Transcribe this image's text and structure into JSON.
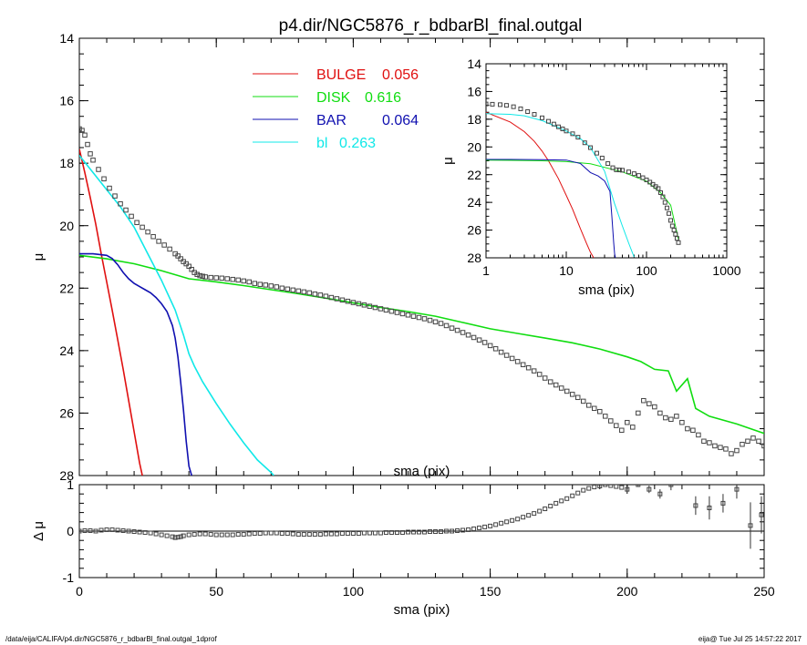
{
  "title": "p4.dir/NGC5876_r_bdbarBl_final.outgal",
  "footer_left": "/data/eija/CALIFA/p4.dir/NGC5876_r_bdbarBl_final.outgal_1dprof",
  "footer_right": "eija@  Tue Jul 25 14:57:22 2017",
  "colors": {
    "bulge": "#e01010",
    "disk": "#10dd10",
    "bar": "#1010b0",
    "bl": "#10e8e8",
    "data": "#444444"
  },
  "chart_data": [
    {
      "type": "line",
      "panel": "main",
      "xlabel": "sma (pix)",
      "ylabel": "μ",
      "xlim": [
        0,
        250
      ],
      "ylim": [
        28,
        14
      ],
      "y_inverted": true,
      "xticks": [
        0,
        50,
        100,
        150,
        200,
        250
      ],
      "yticks": [
        14,
        16,
        18,
        20,
        22,
        24,
        26,
        28
      ],
      "legend_position": "top-center",
      "legend": [
        {
          "key": "bulge",
          "label": "BULGE",
          "value": "0.056"
        },
        {
          "key": "disk",
          "label": "DISK",
          "value": "0.616"
        },
        {
          "key": "bar",
          "label": "BAR",
          "value": "0.064"
        },
        {
          "key": "bl",
          "label": "bl",
          "value": "0.263"
        }
      ],
      "data_points": {
        "x": [
          0,
          1,
          2,
          3,
          4,
          5,
          7,
          9,
          11,
          13,
          15,
          17,
          19,
          21,
          23,
          25,
          27,
          29,
          31,
          33,
          35,
          36,
          37,
          38,
          39,
          40,
          41,
          42,
          43,
          44,
          45,
          46,
          48,
          50,
          52,
          54,
          56,
          58,
          60,
          62,
          64,
          66,
          68,
          70,
          72,
          74,
          76,
          78,
          80,
          82,
          84,
          86,
          88,
          90,
          92,
          94,
          96,
          98,
          100,
          102,
          104,
          106,
          108,
          110,
          112,
          114,
          116,
          118,
          120,
          122,
          124,
          126,
          128,
          130,
          132,
          134,
          136,
          138,
          140,
          142,
          144,
          146,
          148,
          150,
          152,
          154,
          156,
          158,
          160,
          162,
          164,
          166,
          168,
          170,
          172,
          174,
          176,
          178,
          180,
          182,
          184,
          186,
          188,
          190,
          192,
          194,
          196,
          198,
          200,
          202,
          204,
          206,
          208,
          210,
          212,
          214,
          216,
          218,
          220,
          222,
          224,
          226,
          228,
          230,
          232,
          234,
          236,
          238,
          240,
          242,
          244,
          246,
          248,
          250
        ],
        "y": [
          16.9,
          16.95,
          17.1,
          17.4,
          17.7,
          17.9,
          18.2,
          18.5,
          18.8,
          19.05,
          19.3,
          19.5,
          19.7,
          19.9,
          20.05,
          20.2,
          20.35,
          20.5,
          20.62,
          20.75,
          20.9,
          20.97,
          21.06,
          21.15,
          21.22,
          21.3,
          21.4,
          21.5,
          21.56,
          21.6,
          21.62,
          21.64,
          21.66,
          21.67,
          21.68,
          21.7,
          21.72,
          21.74,
          21.77,
          21.8,
          21.85,
          21.88,
          21.9,
          21.93,
          21.96,
          22.0,
          22.03,
          22.06,
          22.09,
          22.12,
          22.15,
          22.19,
          22.22,
          22.26,
          22.3,
          22.34,
          22.38,
          22.42,
          22.46,
          22.5,
          22.54,
          22.58,
          22.62,
          22.66,
          22.7,
          22.74,
          22.78,
          22.82,
          22.86,
          22.9,
          22.94,
          22.98,
          23.03,
          23.08,
          23.13,
          23.2,
          23.28,
          23.35,
          23.42,
          23.5,
          23.58,
          23.66,
          23.74,
          23.84,
          23.94,
          24.05,
          24.15,
          24.25,
          24.35,
          24.45,
          24.55,
          24.65,
          24.76,
          24.88,
          25.0,
          25.1,
          25.2,
          25.3,
          25.4,
          25.5,
          25.62,
          25.75,
          25.85,
          25.95,
          26.1,
          26.25,
          26.4,
          26.55,
          26.3,
          26.45,
          26.0,
          25.6,
          25.7,
          25.8,
          26.0,
          26.15,
          26.2,
          26.1,
          26.3,
          26.5,
          26.55,
          26.7,
          26.9,
          26.95,
          27.05,
          27.1,
          27.15,
          27.3,
          27.2,
          27.0,
          26.9,
          26.8,
          26.9,
          27.05
        ]
      },
      "series": [
        {
          "key": "bulge",
          "x": [
            0,
            2,
            4,
            6,
            8,
            10,
            12,
            14,
            16,
            18,
            20,
            22,
            23
          ],
          "y": [
            17.55,
            18.3,
            19.1,
            19.95,
            20.9,
            21.8,
            22.7,
            23.65,
            24.6,
            25.6,
            26.6,
            27.6,
            28.0
          ]
        },
        {
          "key": "disk",
          "x": [
            0,
            10,
            20,
            30,
            40,
            50,
            60,
            70,
            80,
            90,
            100,
            110,
            120,
            130,
            140,
            150,
            160,
            170,
            180,
            190,
            200,
            205,
            210,
            215,
            218,
            222,
            225,
            230,
            240,
            250
          ],
          "y": [
            20.95,
            21.06,
            21.22,
            21.44,
            21.7,
            21.8,
            21.92,
            22.05,
            22.18,
            22.32,
            22.47,
            22.62,
            22.75,
            22.9,
            23.1,
            23.3,
            23.45,
            23.6,
            23.75,
            23.95,
            24.2,
            24.35,
            24.6,
            24.65,
            25.3,
            24.9,
            25.85,
            26.1,
            26.35,
            26.65
          ]
        },
        {
          "key": "bar",
          "x": [
            0,
            5,
            10,
            12,
            14,
            16,
            18,
            20,
            22,
            24,
            26,
            28,
            30,
            32,
            34,
            35,
            36,
            37,
            38,
            39,
            40,
            41
          ],
          "y": [
            20.9,
            20.9,
            20.95,
            21.05,
            21.25,
            21.5,
            21.7,
            21.85,
            21.95,
            22.05,
            22.15,
            22.3,
            22.5,
            22.75,
            23.2,
            23.6,
            24.2,
            25.0,
            25.9,
            26.9,
            27.7,
            28.0
          ]
        },
        {
          "key": "bl",
          "x": [
            0,
            5,
            10,
            15,
            20,
            25,
            30,
            35,
            38,
            40,
            42,
            45,
            50,
            55,
            60,
            65,
            70,
            71
          ],
          "y": [
            17.75,
            18.3,
            18.85,
            19.4,
            20.05,
            20.9,
            21.75,
            22.7,
            23.5,
            24.1,
            24.5,
            25.0,
            25.7,
            26.35,
            26.95,
            27.5,
            27.9,
            28.0
          ]
        }
      ]
    },
    {
      "type": "line",
      "panel": "inset",
      "xlabel": "sma (pix)",
      "ylabel": "μ",
      "x_scale": "log",
      "xlim": [
        1,
        1000
      ],
      "ylim": [
        28,
        14
      ],
      "y_inverted": true,
      "xticks": [
        1,
        10,
        100,
        1000
      ],
      "xtick_labels": [
        "1",
        "10",
        "100",
        "1000"
      ],
      "yticks": [
        14,
        16,
        18,
        20,
        22,
        24,
        26,
        28
      ],
      "data_points": {
        "x": [
          1,
          1.2,
          1.5,
          1.8,
          2.2,
          2.7,
          3.3,
          4,
          5,
          6,
          7,
          8,
          9,
          10,
          12,
          14,
          17,
          20,
          24,
          28,
          33,
          38,
          42,
          46,
          50,
          60,
          70,
          80,
          90,
          100,
          110,
          120,
          130,
          140,
          150,
          160,
          170,
          180,
          190,
          200,
          210,
          220,
          230,
          240,
          250
        ],
        "y": [
          16.9,
          16.92,
          16.95,
          17.0,
          17.1,
          17.25,
          17.45,
          17.65,
          17.9,
          18.15,
          18.35,
          18.55,
          18.7,
          18.85,
          19.05,
          19.3,
          19.7,
          20.05,
          20.45,
          20.8,
          21.2,
          21.5,
          21.65,
          21.66,
          21.68,
          21.8,
          21.93,
          22.06,
          22.22,
          22.38,
          22.54,
          22.7,
          22.86,
          23.0,
          23.3,
          23.6,
          24.0,
          24.4,
          24.8,
          25.3,
          25.7,
          26.0,
          26.3,
          26.6,
          26.9
        ]
      },
      "series": [
        {
          "key": "bulge",
          "x": [
            1,
            2,
            3,
            4,
            5,
            6,
            8,
            10,
            12,
            15,
            18,
            20,
            22
          ],
          "y": [
            17.5,
            18.2,
            18.9,
            19.6,
            20.3,
            21.0,
            22.3,
            23.5,
            24.5,
            25.9,
            27.0,
            27.6,
            28.0
          ]
        },
        {
          "key": "disk",
          "x": [
            1,
            2,
            5,
            10,
            20,
            50,
            100,
            150,
            200,
            250
          ],
          "y": [
            20.95,
            20.97,
            21.0,
            21.06,
            21.22,
            21.8,
            22.47,
            23.3,
            24.2,
            26.65
          ]
        },
        {
          "key": "bar",
          "x": [
            1,
            2,
            5,
            10,
            15,
            20,
            25,
            30,
            35,
            37,
            39,
            40,
            41
          ],
          "y": [
            20.9,
            20.9,
            20.92,
            20.95,
            21.2,
            21.85,
            22.1,
            22.45,
            23.2,
            25.0,
            26.9,
            27.7,
            28.0
          ]
        },
        {
          "key": "bl",
          "x": [
            1,
            2,
            3,
            5,
            8,
            10,
            15,
            20,
            30,
            40,
            50,
            60,
            70
          ],
          "y": [
            17.6,
            17.65,
            17.75,
            18.1,
            18.6,
            18.85,
            19.4,
            20.05,
            21.75,
            24.1,
            25.7,
            26.95,
            27.95
          ]
        }
      ]
    },
    {
      "type": "scatter",
      "panel": "residual",
      "xlabel": "sma (pix)",
      "ylabel": "Δ μ",
      "xlim": [
        0,
        250
      ],
      "ylim": [
        -1,
        1
      ],
      "xticks": [
        0,
        50,
        100,
        150,
        200,
        250
      ],
      "yticks": [
        -1,
        0,
        1
      ],
      "zero_line": true,
      "points": {
        "x": [
          0,
          2,
          4,
          6,
          8,
          10,
          12,
          14,
          16,
          18,
          20,
          22,
          24,
          26,
          28,
          30,
          32,
          34,
          35,
          36,
          37,
          38,
          40,
          42,
          44,
          46,
          48,
          50,
          52,
          54,
          56,
          58,
          60,
          62,
          64,
          66,
          68,
          70,
          72,
          74,
          76,
          78,
          80,
          82,
          84,
          86,
          88,
          90,
          92,
          94,
          96,
          98,
          100,
          102,
          104,
          106,
          108,
          110,
          112,
          114,
          116,
          118,
          120,
          122,
          124,
          126,
          128,
          130,
          132,
          134,
          136,
          138,
          140,
          142,
          144,
          146,
          148,
          150,
          152,
          154,
          156,
          158,
          160,
          162,
          164,
          166,
          168,
          170,
          172,
          174,
          176,
          178,
          180,
          182,
          184,
          186,
          188,
          190,
          192,
          194,
          196,
          198,
          200,
          204,
          208,
          212,
          216,
          220,
          225,
          230,
          235,
          240,
          245,
          249
        ],
        "y": [
          0.0,
          0.01,
          0.01,
          0.0,
          0.02,
          0.03,
          0.03,
          0.02,
          0.01,
          0.0,
          -0.01,
          -0.02,
          -0.03,
          -0.04,
          -0.06,
          -0.08,
          -0.1,
          -0.12,
          -0.14,
          -0.13,
          -0.12,
          -0.1,
          -0.08,
          -0.07,
          -0.06,
          -0.06,
          -0.07,
          -0.08,
          -0.08,
          -0.08,
          -0.08,
          -0.07,
          -0.07,
          -0.06,
          -0.05,
          -0.05,
          -0.04,
          -0.04,
          -0.04,
          -0.05,
          -0.05,
          -0.06,
          -0.07,
          -0.07,
          -0.07,
          -0.07,
          -0.07,
          -0.06,
          -0.06,
          -0.06,
          -0.05,
          -0.05,
          -0.05,
          -0.05,
          -0.04,
          -0.04,
          -0.04,
          -0.04,
          -0.03,
          -0.03,
          -0.03,
          -0.03,
          -0.02,
          -0.02,
          -0.02,
          -0.02,
          -0.01,
          -0.01,
          -0.01,
          0.0,
          0.0,
          0.01,
          0.02,
          0.03,
          0.05,
          0.07,
          0.09,
          0.11,
          0.14,
          0.17,
          0.2,
          0.23,
          0.26,
          0.3,
          0.34,
          0.38,
          0.43,
          0.48,
          0.54,
          0.6,
          0.65,
          0.7,
          0.76,
          0.82,
          0.88,
          0.92,
          0.95,
          0.97,
          1.0,
          0.98,
          0.96,
          0.94,
          0.9,
          1.0,
          0.9,
          0.8,
          1.0,
          1.05,
          0.55,
          0.5,
          0.6,
          0.9,
          0.12,
          0.35
        ],
        "yerr": [
          0,
          0,
          0,
          0,
          0,
          0,
          0,
          0,
          0,
          0,
          0,
          0,
          0,
          0,
          0,
          0,
          0,
          0,
          0,
          0,
          0,
          0,
          0,
          0,
          0,
          0,
          0,
          0,
          0,
          0,
          0,
          0,
          0,
          0,
          0,
          0,
          0,
          0,
          0,
          0,
          0,
          0,
          0,
          0,
          0,
          0,
          0,
          0,
          0,
          0,
          0,
          0,
          0,
          0,
          0,
          0,
          0,
          0,
          0,
          0,
          0,
          0,
          0,
          0,
          0,
          0,
          0,
          0,
          0,
          0,
          0,
          0,
          0,
          0,
          0,
          0,
          0,
          0,
          0,
          0,
          0,
          0,
          0,
          0,
          0,
          0,
          0,
          0,
          0,
          0,
          0,
          0,
          0,
          0,
          0,
          0,
          0,
          0,
          0,
          0,
          0,
          0,
          0,
          0.05,
          0.08,
          0.1,
          0.12,
          0.15,
          0.2,
          0.25,
          0.2,
          0.2,
          0.5,
          0.4
        ]
      }
    }
  ]
}
